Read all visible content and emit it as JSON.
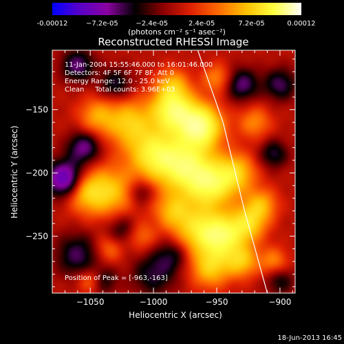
{
  "colorbar": {
    "ticks": [
      "-0.00012",
      "−7.2e-05",
      "−2.4e-05",
      "2.4e-05",
      "7.2e-05",
      "0.00012"
    ],
    "tick_values": [
      -0.00012,
      -7.2e-05,
      -2.4e-05,
      2.4e-05,
      7.2e-05,
      0.00012
    ],
    "unit_label": "(photons cm⁻² s⁻¹ asec⁻²)",
    "range": [
      -0.00012,
      0.00012
    ],
    "colormap": [
      "#0000ff",
      "#5a00c8",
      "#8a00a0",
      "#000000",
      "#8c0000",
      "#e02000",
      "#ff6a00",
      "#ffc000",
      "#ffff40",
      "#ffffff"
    ]
  },
  "chart_data": {
    "type": "heatmap",
    "title": "Reconstructed RHESSI Image",
    "xlabel": "Heliocentric X (arcsec)",
    "ylabel": "Heliocentric Y (arcsec)",
    "xlim": [
      -1080,
      -888
    ],
    "ylim": [
      -295,
      -103
    ],
    "x_ticks": [
      -1050,
      -1000,
      -950,
      -900
    ],
    "y_ticks": [
      -150,
      -200,
      -250
    ],
    "x_tick_labels": [
      "−1050",
      "−1000",
      "−950",
      "−900"
    ],
    "y_tick_labels": [
      "−150",
      "−200",
      "−250"
    ],
    "info_lines": [
      "11-Jan-2004 15:55:46.000 to 16:01:46.000",
      "Detectors: 4F 5F 6F 7F 8F, Att 0",
      "Energy Range: 12.0 - 25.0 keV",
      "Clean     Total counts: 3.96E+03"
    ],
    "peak_label": "Position of Peak = [-963,-163]",
    "peak": [
      -963,
      -163
    ],
    "limb": [
      [
        -965,
        -103
      ],
      [
        -945,
        -160
      ],
      [
        -928,
        -230
      ],
      [
        -910,
        -295
      ]
    ],
    "blobs": [
      {
        "x": -963,
        "y": -163,
        "r": 12,
        "v": 1.0
      },
      {
        "x": -985,
        "y": -150,
        "r": 12,
        "v": 0.85
      },
      {
        "x": -975,
        "y": -195,
        "r": 15,
        "v": 0.8
      },
      {
        "x": -1000,
        "y": -185,
        "r": 14,
        "v": 0.7
      },
      {
        "x": -1020,
        "y": -160,
        "r": 13,
        "v": 0.55
      },
      {
        "x": -1035,
        "y": -215,
        "r": 14,
        "v": 0.55
      },
      {
        "x": -1055,
        "y": -215,
        "r": 11,
        "v": 0.45
      },
      {
        "x": -1045,
        "y": -155,
        "r": 10,
        "v": 0.4
      },
      {
        "x": -955,
        "y": -210,
        "r": 13,
        "v": 0.7
      },
      {
        "x": -935,
        "y": -200,
        "r": 11,
        "v": 0.55
      },
      {
        "x": -945,
        "y": -250,
        "r": 12,
        "v": 0.75
      },
      {
        "x": -925,
        "y": -240,
        "r": 10,
        "v": 0.55
      },
      {
        "x": -915,
        "y": -225,
        "r": 9,
        "v": 0.45
      },
      {
        "x": -965,
        "y": -245,
        "r": 13,
        "v": 0.6
      },
      {
        "x": -985,
        "y": -230,
        "r": 10,
        "v": 0.45
      },
      {
        "x": -955,
        "y": -275,
        "r": 11,
        "v": 0.55
      },
      {
        "x": -930,
        "y": -270,
        "r": 9,
        "v": 0.5
      },
      {
        "x": -905,
        "y": -270,
        "r": 8,
        "v": 0.35
      },
      {
        "x": -1035,
        "y": -260,
        "r": 8,
        "v": 0.3
      },
      {
        "x": -1010,
        "y": -250,
        "r": 8,
        "v": 0.3
      },
      {
        "x": -985,
        "y": -130,
        "r": 9,
        "v": 0.4
      },
      {
        "x": -950,
        "y": -125,
        "r": 8,
        "v": 0.35
      },
      {
        "x": -920,
        "y": -160,
        "r": 9,
        "v": 0.35
      },
      {
        "x": -1060,
        "y": -115,
        "r": 9,
        "v": -0.45
      },
      {
        "x": -1070,
        "y": -205,
        "r": 10,
        "v": -0.8
      },
      {
        "x": -1055,
        "y": -180,
        "r": 9,
        "v": -0.5
      },
      {
        "x": -1030,
        "y": -130,
        "r": 9,
        "v": -0.35
      },
      {
        "x": -930,
        "y": -130,
        "r": 9,
        "v": -0.45
      },
      {
        "x": -900,
        "y": -130,
        "r": 9,
        "v": -0.4
      },
      {
        "x": -905,
        "y": -185,
        "r": 8,
        "v": -0.35
      },
      {
        "x": -1060,
        "y": -265,
        "r": 12,
        "v": -0.4
      },
      {
        "x": -1025,
        "y": -245,
        "r": 9,
        "v": -0.3
      },
      {
        "x": -1000,
        "y": -280,
        "r": 12,
        "v": -0.35
      },
      {
        "x": -985,
        "y": -265,
        "r": 9,
        "v": -0.3
      },
      {
        "x": -1040,
        "y": -285,
        "r": 8,
        "v": -0.3
      },
      {
        "x": -900,
        "y": -285,
        "r": 8,
        "v": -0.3
      },
      {
        "x": -1010,
        "y": -215,
        "r": 7,
        "v": -0.3
      },
      {
        "x": -1050,
        "y": -285,
        "r": 7,
        "v": 0.35
      }
    ]
  },
  "timestamp": "18-Jun-2013 16:45"
}
